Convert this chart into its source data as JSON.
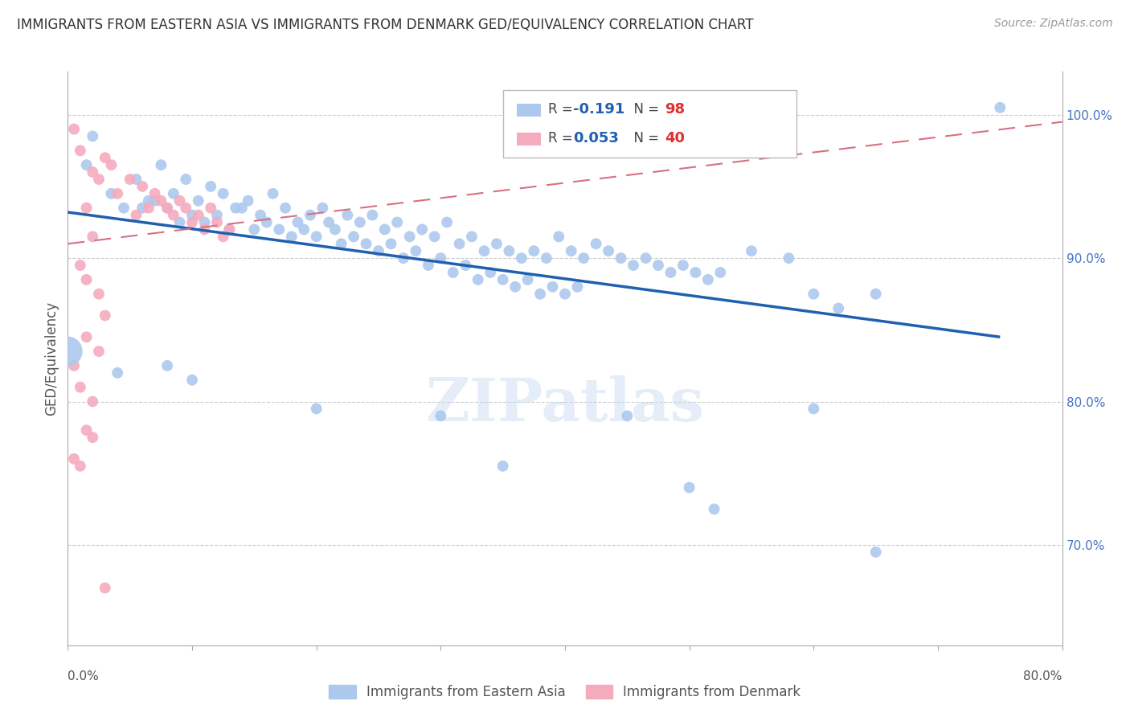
{
  "title": "IMMIGRANTS FROM EASTERN ASIA VS IMMIGRANTS FROM DENMARK GED/EQUIVALENCY CORRELATION CHART",
  "source": "Source: ZipAtlas.com",
  "ylabel": "GED/Equivalency",
  "watermark": "ZIPatlas",
  "legend": {
    "blue_R": "-0.191",
    "blue_N": "98",
    "pink_R": "0.053",
    "pink_N": "40",
    "series1_name": "Immigrants from Eastern Asia",
    "series2_name": "Immigrants from Denmark"
  },
  "blue_color": "#adc8ed",
  "pink_color": "#f4abbe",
  "blue_line_color": "#2060b0",
  "pink_line_color": "#d87080",
  "right_axis_color": "#4472c4",
  "legend_R_color": "#2060b0",
  "legend_N_color": "#e03030",
  "blue_scatter": [
    [
      1.5,
      96.5
    ],
    [
      2.0,
      98.5
    ],
    [
      3.5,
      94.5
    ],
    [
      4.5,
      93.5
    ],
    [
      5.5,
      95.5
    ],
    [
      6.5,
      94.0
    ],
    [
      7.5,
      96.5
    ],
    [
      8.5,
      94.5
    ],
    [
      9.5,
      95.5
    ],
    [
      10.5,
      94.0
    ],
    [
      11.5,
      95.0
    ],
    [
      12.5,
      94.5
    ],
    [
      13.5,
      93.5
    ],
    [
      14.5,
      94.0
    ],
    [
      15.5,
      93.0
    ],
    [
      16.5,
      94.5
    ],
    [
      17.5,
      93.5
    ],
    [
      18.5,
      92.5
    ],
    [
      19.5,
      93.0
    ],
    [
      20.5,
      93.5
    ],
    [
      21.5,
      92.0
    ],
    [
      22.5,
      93.0
    ],
    [
      23.5,
      92.5
    ],
    [
      24.5,
      93.0
    ],
    [
      25.5,
      92.0
    ],
    [
      26.5,
      92.5
    ],
    [
      27.5,
      91.5
    ],
    [
      28.5,
      92.0
    ],
    [
      29.5,
      91.5
    ],
    [
      30.5,
      92.5
    ],
    [
      31.5,
      91.0
    ],
    [
      32.5,
      91.5
    ],
    [
      33.5,
      90.5
    ],
    [
      34.5,
      91.0
    ],
    [
      35.5,
      90.5
    ],
    [
      36.5,
      90.0
    ],
    [
      37.5,
      90.5
    ],
    [
      38.5,
      90.0
    ],
    [
      39.5,
      91.5
    ],
    [
      40.5,
      90.5
    ],
    [
      41.5,
      90.0
    ],
    [
      42.5,
      91.0
    ],
    [
      43.5,
      90.5
    ],
    [
      44.5,
      90.0
    ],
    [
      45.5,
      89.5
    ],
    [
      46.5,
      90.0
    ],
    [
      47.5,
      89.5
    ],
    [
      48.5,
      89.0
    ],
    [
      49.5,
      89.5
    ],
    [
      50.5,
      89.0
    ],
    [
      51.5,
      88.5
    ],
    [
      52.5,
      89.0
    ],
    [
      6.0,
      93.5
    ],
    [
      7.0,
      94.0
    ],
    [
      8.0,
      93.5
    ],
    [
      9.0,
      92.5
    ],
    [
      10.0,
      93.0
    ],
    [
      11.0,
      92.5
    ],
    [
      12.0,
      93.0
    ],
    [
      13.0,
      92.0
    ],
    [
      14.0,
      93.5
    ],
    [
      15.0,
      92.0
    ],
    [
      16.0,
      92.5
    ],
    [
      17.0,
      92.0
    ],
    [
      18.0,
      91.5
    ],
    [
      19.0,
      92.0
    ],
    [
      20.0,
      91.5
    ],
    [
      21.0,
      92.5
    ],
    [
      22.0,
      91.0
    ],
    [
      23.0,
      91.5
    ],
    [
      24.0,
      91.0
    ],
    [
      25.0,
      90.5
    ],
    [
      26.0,
      91.0
    ],
    [
      27.0,
      90.0
    ],
    [
      28.0,
      90.5
    ],
    [
      29.0,
      89.5
    ],
    [
      30.0,
      90.0
    ],
    [
      31.0,
      89.0
    ],
    [
      32.0,
      89.5
    ],
    [
      33.0,
      88.5
    ],
    [
      34.0,
      89.0
    ],
    [
      35.0,
      88.5
    ],
    [
      36.0,
      88.0
    ],
    [
      37.0,
      88.5
    ],
    [
      38.0,
      87.5
    ],
    [
      39.0,
      88.0
    ],
    [
      40.0,
      87.5
    ],
    [
      41.0,
      88.0
    ],
    [
      55.0,
      90.5
    ],
    [
      58.0,
      90.0
    ],
    [
      60.0,
      87.5
    ],
    [
      62.0,
      86.5
    ],
    [
      65.0,
      87.5
    ],
    [
      4.0,
      82.0
    ],
    [
      8.0,
      82.5
    ],
    [
      10.0,
      81.5
    ],
    [
      20.0,
      79.5
    ],
    [
      30.0,
      79.0
    ],
    [
      35.0,
      75.5
    ],
    [
      45.0,
      79.0
    ],
    [
      50.0,
      74.0
    ],
    [
      52.0,
      72.5
    ],
    [
      60.0,
      79.5
    ],
    [
      65.0,
      69.5
    ],
    [
      75.0,
      100.5
    ]
  ],
  "pink_scatter": [
    [
      0.5,
      99.0
    ],
    [
      1.0,
      97.5
    ],
    [
      2.0,
      96.0
    ],
    [
      2.5,
      95.5
    ],
    [
      3.0,
      97.0
    ],
    [
      3.5,
      96.5
    ],
    [
      4.0,
      94.5
    ],
    [
      5.0,
      95.5
    ],
    [
      5.5,
      93.0
    ],
    [
      6.0,
      95.0
    ],
    [
      6.5,
      93.5
    ],
    [
      7.0,
      94.5
    ],
    [
      7.5,
      94.0
    ],
    [
      8.0,
      93.5
    ],
    [
      8.5,
      93.0
    ],
    [
      9.0,
      94.0
    ],
    [
      9.5,
      93.5
    ],
    [
      10.0,
      92.5
    ],
    [
      10.5,
      93.0
    ],
    [
      11.0,
      92.0
    ],
    [
      11.5,
      93.5
    ],
    [
      12.0,
      92.5
    ],
    [
      12.5,
      91.5
    ],
    [
      13.0,
      92.0
    ],
    [
      1.5,
      93.5
    ],
    [
      2.0,
      91.5
    ],
    [
      1.0,
      89.5
    ],
    [
      1.5,
      88.5
    ],
    [
      2.5,
      87.5
    ],
    [
      3.0,
      86.0
    ],
    [
      1.5,
      84.5
    ],
    [
      2.5,
      83.5
    ],
    [
      0.5,
      82.5
    ],
    [
      1.0,
      81.0
    ],
    [
      2.0,
      80.0
    ],
    [
      1.5,
      78.0
    ],
    [
      0.5,
      76.0
    ],
    [
      1.0,
      75.5
    ],
    [
      2.0,
      77.5
    ],
    [
      3.0,
      67.0
    ]
  ],
  "xlim": [
    0,
    80
  ],
  "ylim": [
    63,
    103
  ],
  "blue_line_x": [
    0,
    75
  ],
  "blue_line_y": [
    93.2,
    84.5
  ],
  "pink_line_x": [
    0,
    80
  ],
  "pink_line_y": [
    91.0,
    99.5
  ],
  "large_blue_dot_x": 0,
  "large_blue_dot_y": 83.5
}
